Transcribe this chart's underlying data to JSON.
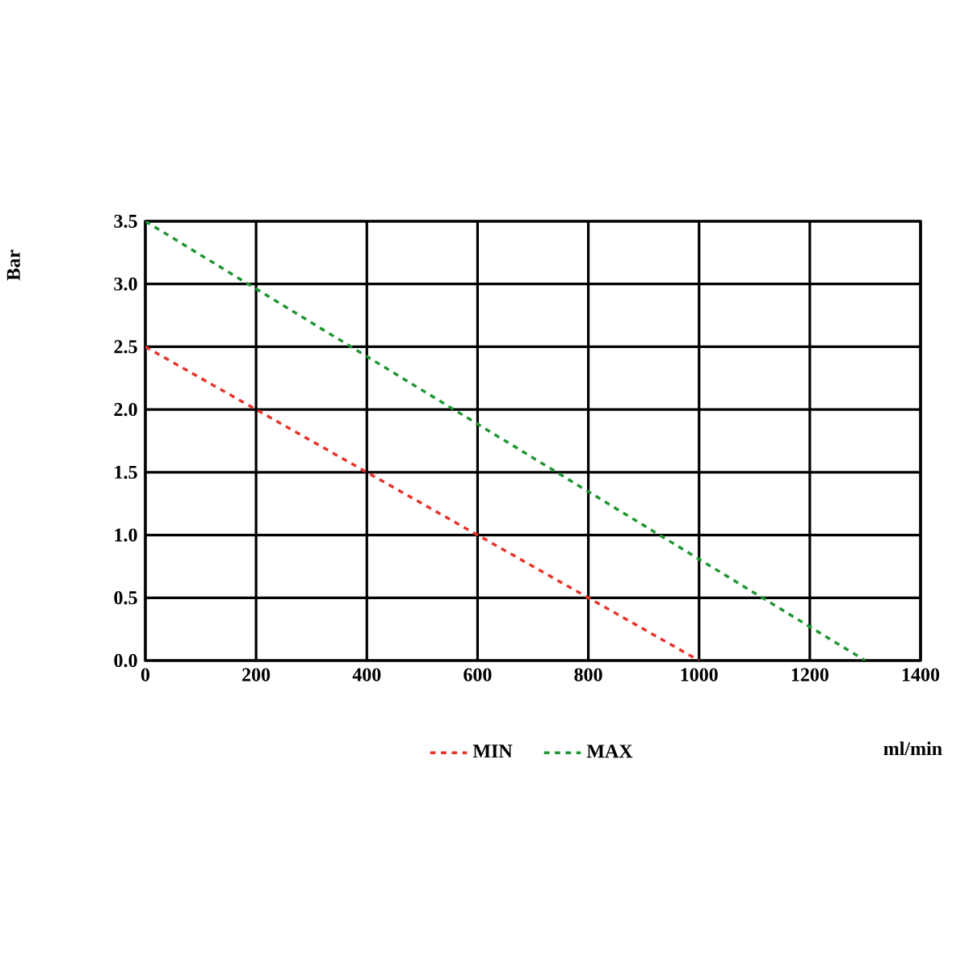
{
  "chart_data": {
    "type": "line",
    "xlabel": "ml/min",
    "ylabel": "Bar",
    "xlim": [
      0,
      1400
    ],
    "ylim": [
      0,
      3.5
    ],
    "xticks": [
      0,
      200,
      400,
      600,
      800,
      1000,
      1200,
      1400
    ],
    "yticks": [
      {
        "value": 0,
        "label": "0.0"
      },
      {
        "value": 0.5,
        "label": "0.5"
      },
      {
        "value": 1,
        "label": "1.0"
      },
      {
        "value": 1.5,
        "label": "1.5"
      },
      {
        "value": 2,
        "label": "2.0"
      },
      {
        "value": 2.5,
        "label": "2.5"
      },
      {
        "value": 3,
        "label": "3.0"
      },
      {
        "value": 3.5,
        "label": "3.5"
      }
    ],
    "grid": true,
    "legend": "bottom",
    "marker": "none",
    "line_style": "dashed",
    "series": [
      {
        "name": "MIN",
        "color": "#e8322a",
        "x": [
          0,
          1000
        ],
        "values": [
          2.5,
          0
        ]
      },
      {
        "name": "MAX",
        "color": "#1e9632",
        "x": [
          0,
          1300
        ],
        "values": [
          3.5,
          0
        ]
      }
    ]
  }
}
